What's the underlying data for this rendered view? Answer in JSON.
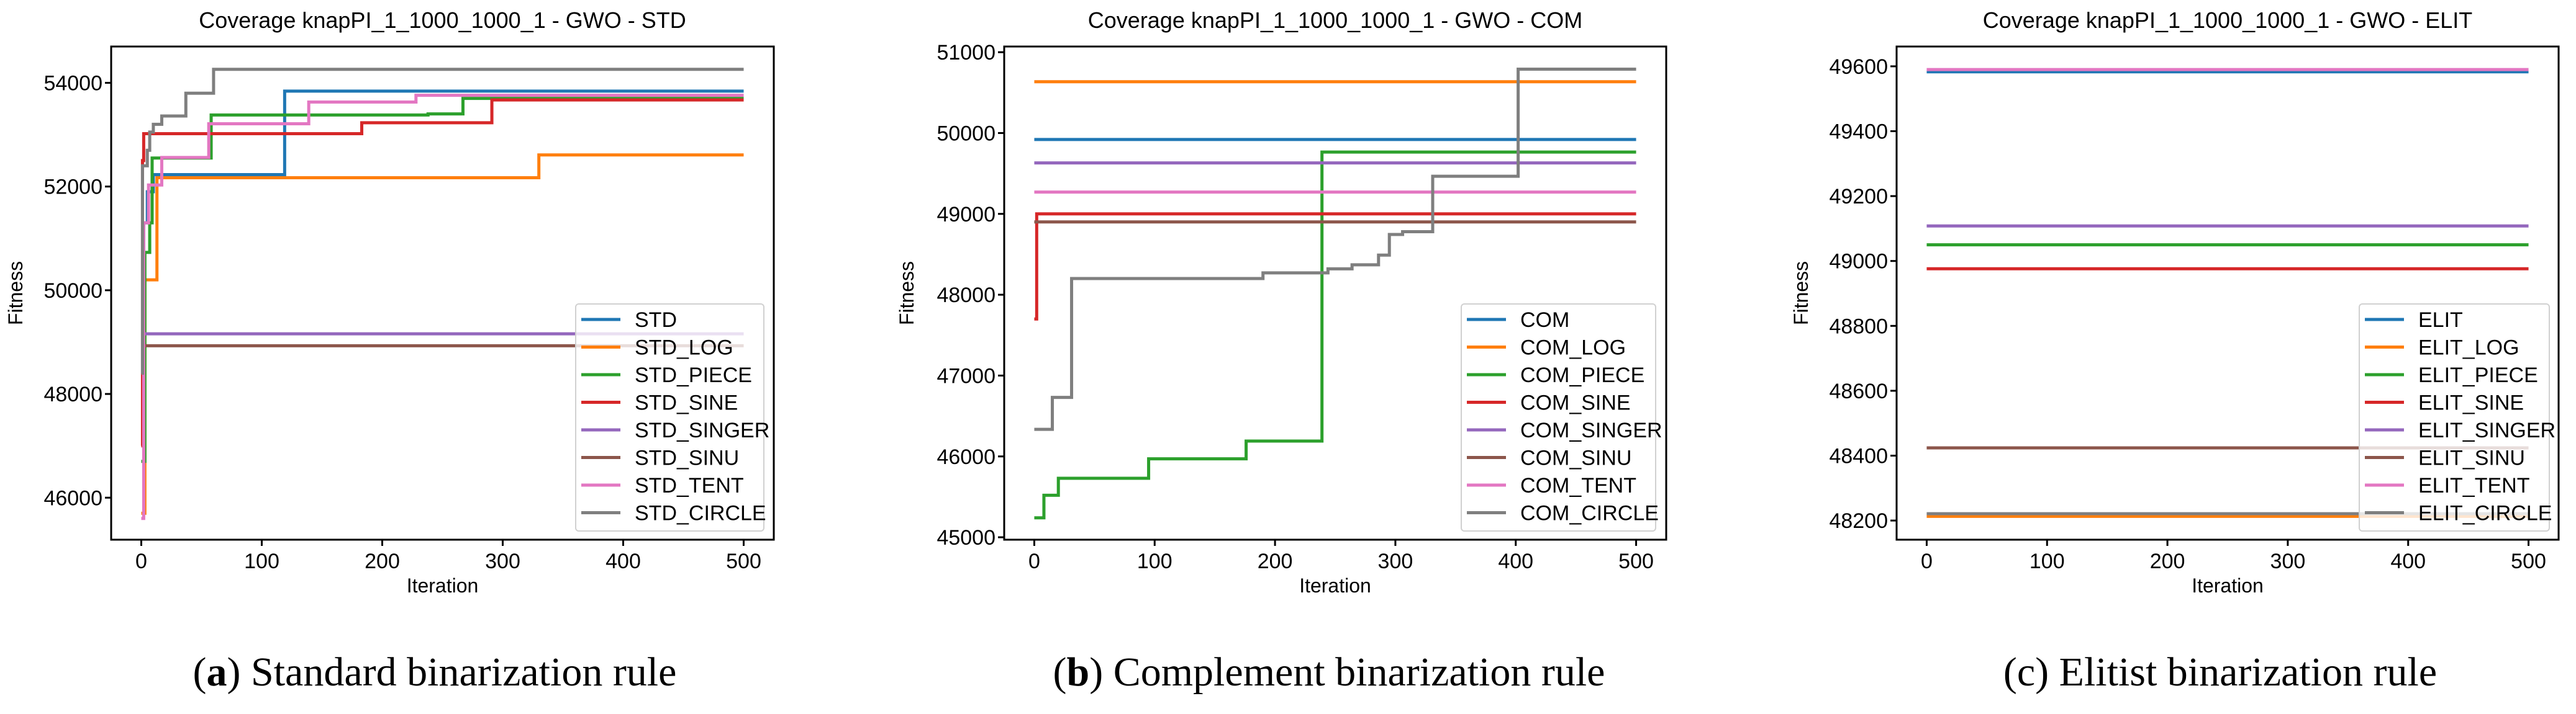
{
  "captions": [
    {
      "label": "a",
      "text": "Standard binarization rule"
    },
    {
      "label": "b",
      "text": "Complement binarization rule"
    },
    {
      "label": "c",
      "text": "Elitist binarization rule"
    }
  ],
  "chart_data": [
    {
      "type": "line",
      "title": "Coverage knapPI_1_1000_1000_1 - GWO - STD",
      "xlabel": "Iteration",
      "ylabel": "Fitness",
      "xlim": [
        -25,
        525
      ],
      "ylim": [
        45190,
        54700
      ],
      "xticks": [
        0,
        100,
        200,
        300,
        400,
        500
      ],
      "yticks": [
        46000,
        48000,
        50000,
        52000,
        54000
      ],
      "grid": false,
      "legend": "lower-right",
      "series": [
        {
          "name": "STD",
          "color": "#1f77b4",
          "steps": [
            [
              0,
              48500
            ],
            [
              2,
              51300
            ],
            [
              5,
              51900
            ],
            [
              10,
              52230
            ],
            [
              119,
              53840
            ]
          ]
        },
        {
          "name": "STD_LOG",
          "color": "#ff7f0e",
          "steps": [
            [
              0,
              45700
            ],
            [
              3,
              50200
            ],
            [
              13,
              52170
            ],
            [
              330,
              52610
            ]
          ]
        },
        {
          "name": "STD_PIECE",
          "color": "#2ca02c",
          "steps": [
            [
              0,
              46700
            ],
            [
              3,
              50730
            ],
            [
              7,
              51300
            ],
            [
              9,
              52550
            ],
            [
              58,
              53380
            ],
            [
              238,
              53400
            ],
            [
              267,
              53700
            ]
          ]
        },
        {
          "name": "STD_SINE",
          "color": "#d62728",
          "steps": [
            [
              0,
              47000
            ],
            [
              1,
              52500
            ],
            [
              2,
              53020
            ],
            [
              183,
              53230
            ],
            [
              291,
              53670
            ]
          ]
        },
        {
          "name": "STD_SINGER",
          "color": "#9467bd",
          "steps": [
            [
              0,
              49160
            ]
          ]
        },
        {
          "name": "STD_SINU",
          "color": "#8c564b",
          "steps": [
            [
              0,
              48930
            ]
          ]
        },
        {
          "name": "STD_TENT",
          "color": "#e377c2",
          "steps": [
            [
              0,
              45600
            ],
            [
              2,
              51300
            ],
            [
              6,
              52030
            ],
            [
              17,
              52560
            ],
            [
              56,
              53210
            ],
            [
              139,
              53630
            ],
            [
              228,
              53760
            ]
          ]
        },
        {
          "name": "STD_CIRCLE",
          "color": "#7f7f7f",
          "steps": [
            [
              0,
              48400
            ],
            [
              1,
              52400
            ],
            [
              5,
              52700
            ],
            [
              7,
              53050
            ],
            [
              10,
              53200
            ],
            [
              17,
              53360
            ],
            [
              37,
              53800
            ],
            [
              60,
              54260
            ]
          ]
        }
      ]
    },
    {
      "type": "line",
      "title": "Coverage knapPI_1_1000_1000_1 - GWO - COM",
      "xlabel": "Iteration",
      "ylabel": "Fitness",
      "xlim": [
        -25,
        525
      ],
      "ylim": [
        44970,
        51070
      ],
      "xticks": [
        0,
        100,
        200,
        300,
        400,
        500
      ],
      "yticks": [
        45000,
        46000,
        47000,
        48000,
        49000,
        50000,
        51000
      ],
      "grid": false,
      "legend": "lower-right",
      "series": [
        {
          "name": "COM",
          "color": "#1f77b4",
          "steps": [
            [
              0,
              49920
            ]
          ]
        },
        {
          "name": "COM_LOG",
          "color": "#ff7f0e",
          "steps": [
            [
              0,
              50635
            ]
          ]
        },
        {
          "name": "COM_PIECE",
          "color": "#2ca02c",
          "steps": [
            [
              0,
              45240
            ],
            [
              8,
              45520
            ],
            [
              20,
              45730
            ],
            [
              95,
              45970
            ],
            [
              176,
              46190
            ],
            [
              239,
              49765
            ]
          ]
        },
        {
          "name": "COM_SINE",
          "color": "#d62728",
          "steps": [
            [
              0,
              47700
            ],
            [
              2,
              49000
            ]
          ]
        },
        {
          "name": "COM_SINGER",
          "color": "#9467bd",
          "steps": [
            [
              0,
              49630
            ]
          ]
        },
        {
          "name": "COM_SINU",
          "color": "#8c564b",
          "steps": [
            [
              0,
              48900
            ]
          ]
        },
        {
          "name": "COM_TENT",
          "color": "#e377c2",
          "steps": [
            [
              0,
              49270
            ]
          ]
        },
        {
          "name": "COM_CIRCLE",
          "color": "#7f7f7f",
          "steps": [
            [
              0,
              46335
            ],
            [
              15,
              46730
            ],
            [
              31,
              48200
            ],
            [
              190,
              48270
            ],
            [
              244,
              48320
            ],
            [
              264,
              48370
            ],
            [
              286,
              48490
            ],
            [
              295,
              48745
            ],
            [
              306,
              48780
            ],
            [
              331,
              49465
            ],
            [
              402,
              50790
            ]
          ]
        }
      ]
    },
    {
      "type": "line",
      "title": "Coverage knapPI_1_1000_1000_1 - GWO - ELIT",
      "xlabel": "Iteration",
      "ylabel": "Fitness",
      "xlim": [
        -25,
        525
      ],
      "ylim": [
        48141,
        49661
      ],
      "xticks": [
        0,
        100,
        200,
        300,
        400,
        500
      ],
      "yticks": [
        48200,
        48400,
        48600,
        48800,
        49000,
        49200,
        49400,
        49600
      ],
      "grid": false,
      "legend": "lower-right",
      "series": [
        {
          "name": "ELIT",
          "color": "#1f77b4",
          "steps": [
            [
              0,
              49583
            ]
          ]
        },
        {
          "name": "ELIT_LOG",
          "color": "#ff7f0e",
          "steps": [
            [
              0,
              48213
            ]
          ]
        },
        {
          "name": "ELIT_PIECE",
          "color": "#2ca02c",
          "steps": [
            [
              0,
              49050
            ]
          ]
        },
        {
          "name": "ELIT_SINE",
          "color": "#d62728",
          "steps": [
            [
              0,
              48976
            ]
          ]
        },
        {
          "name": "ELIT_SINGER",
          "color": "#9467bd",
          "steps": [
            [
              0,
              49108
            ]
          ]
        },
        {
          "name": "ELIT_SINU",
          "color": "#8c564b",
          "steps": [
            [
              0,
              48424
            ]
          ]
        },
        {
          "name": "ELIT_TENT",
          "color": "#e377c2",
          "steps": [
            [
              0,
              49590
            ]
          ]
        },
        {
          "name": "ELIT_CIRCLE",
          "color": "#7f7f7f",
          "steps": [
            [
              0,
              48221
            ]
          ]
        }
      ]
    }
  ]
}
